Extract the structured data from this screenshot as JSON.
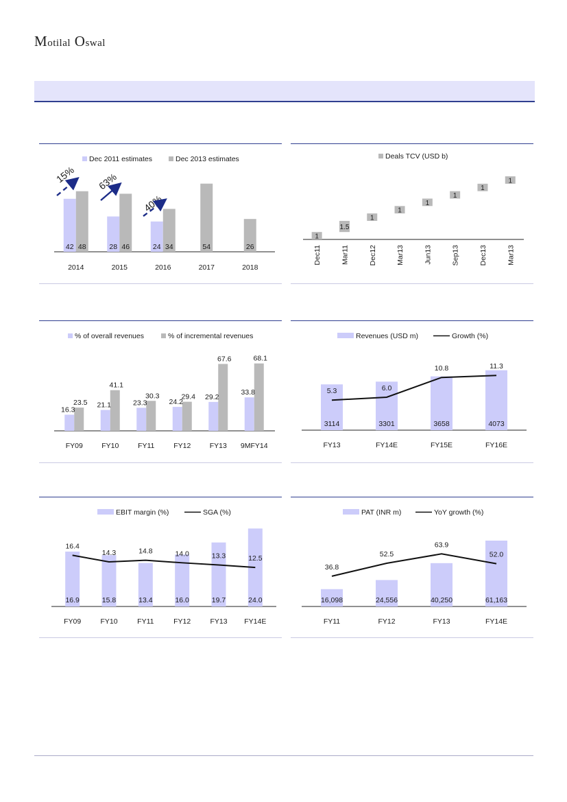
{
  "brand": {
    "first_initial": "M",
    "first_rest": "otilal",
    "second_initial": "O",
    "second_rest": "swal"
  },
  "colors": {
    "primary": "#ccccfa",
    "secondary": "#b9b9b9",
    "line": "#111111",
    "accent_arrow": "#1c2c88",
    "rule": "#2f3e8f"
  },
  "chart_data": [
    {
      "id": "estimates",
      "type": "bar",
      "legend": [
        "Dec 2011 estimates",
        "Dec 2013 estimates"
      ],
      "categories": [
        "2014",
        "2015",
        "2016",
        "2017",
        "2018"
      ],
      "series": [
        {
          "name": "Dec 2011 estimates",
          "values": [
            42,
            28,
            24,
            null,
            null
          ]
        },
        {
          "name": "Dec 2013 estimates",
          "values": [
            48,
            46,
            34,
            54,
            26
          ]
        }
      ],
      "value_labels": [
        [
          "42",
          "48"
        ],
        [
          "28",
          "46"
        ],
        [
          "24",
          "34"
        ],
        [
          "",
          "54"
        ],
        [
          "",
          "26"
        ]
      ],
      "annotations": [
        "15%",
        "63%",
        "40%"
      ],
      "ylim": [
        0,
        56
      ]
    },
    {
      "id": "deals",
      "type": "waterfall",
      "legend": [
        "Deals TCV (USD b)"
      ],
      "categories": [
        "Dec11",
        "Mar11",
        "Dec12",
        "Mar13",
        "Jun13",
        "Sep13",
        "Dec13",
        "Mar13"
      ],
      "values": [
        1,
        1.5,
        1,
        1,
        1,
        1,
        1,
        1
      ],
      "labels": [
        "1",
        "1.5",
        "1",
        "1",
        "1",
        "1",
        "1",
        "1"
      ],
      "ylim": [
        0,
        8.5
      ]
    },
    {
      "id": "share",
      "type": "bar",
      "legend": [
        "% of overall revenues",
        "% of incremental revenues"
      ],
      "categories": [
        "FY09",
        "FY10",
        "FY11",
        "FY12",
        "FY13",
        "9MFY14"
      ],
      "series": [
        {
          "name": "% of overall revenues",
          "values": [
            16.3,
            21.1,
            23.3,
            24.2,
            29.2,
            33.8
          ]
        },
        {
          "name": "% of incremental revenues",
          "values": [
            23.5,
            41.1,
            30.3,
            29.4,
            67.6,
            68.1
          ]
        }
      ],
      "ylim": [
        0,
        70
      ]
    },
    {
      "id": "revenue",
      "type": "bar+line",
      "legend": [
        "Revenues (USD m)",
        "Growth (%)"
      ],
      "categories": [
        "FY13",
        "FY14E",
        "FY15E",
        "FY16E"
      ],
      "bars": [
        3114,
        3301,
        3658,
        4073
      ],
      "bar_labels": [
        "3114",
        "3301",
        "3658",
        "4073"
      ],
      "line": [
        5.3,
        6.0,
        10.8,
        11.3
      ],
      "line_labels": [
        "5.3",
        "6.0",
        "10.8",
        "11.3"
      ],
      "bar_ylim": [
        0,
        4200
      ],
      "line_ylim": [
        -2,
        13
      ]
    },
    {
      "id": "margin",
      "type": "bar+line",
      "legend": [
        "EBIT margin (%)",
        "SGA (%)"
      ],
      "categories": [
        "FY09",
        "FY10",
        "FY11",
        "FY12",
        "FY13",
        "FY14E"
      ],
      "bars": [
        16.9,
        15.8,
        13.4,
        16.0,
        19.7,
        24.0
      ],
      "bar_labels": [
        "16.9",
        "15.8",
        "13.4",
        "16.0",
        "19.7",
        "24.0"
      ],
      "line": [
        16.4,
        14.3,
        14.8,
        14.0,
        13.3,
        12.5
      ],
      "line_labels": [
        "16.4",
        "14.3",
        "14.8",
        "14.0",
        "13.3",
        "12.5"
      ],
      "bar_ylim": [
        0,
        24.5
      ],
      "line_ylim": [
        0,
        25.5
      ]
    },
    {
      "id": "pat",
      "type": "bar+line",
      "legend": [
        "PAT (INR m)",
        "YoY growth (%)"
      ],
      "categories": [
        "FY11",
        "FY12",
        "FY13",
        "FY14E"
      ],
      "bars": [
        16098,
        24556,
        40250,
        61163
      ],
      "bar_labels": [
        "16,098",
        "24,556",
        "40,250",
        "61,163"
      ],
      "line": [
        36.8,
        52.5,
        63.9,
        52.0
      ],
      "line_labels": [
        "36.8",
        "52.5",
        "63.9",
        "52.0"
      ],
      "bar_ylim": [
        0,
        61163
      ],
      "line_ylim": [
        0,
        80
      ]
    }
  ]
}
